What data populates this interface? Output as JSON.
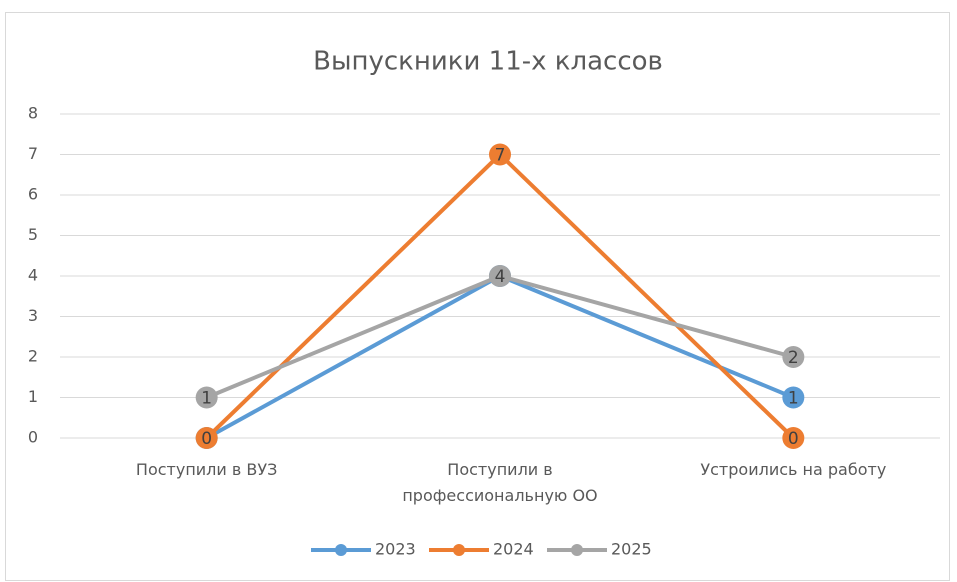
{
  "chart_data": {
    "type": "line",
    "title": "Выпускники 11-х классов",
    "categories": [
      "Поступили в ВУЗ",
      "Поступили в профессиональную ОО",
      "Устроились на работу"
    ],
    "series": [
      {
        "name": "2023",
        "color": "#5b9bd5",
        "values": [
          0,
          4,
          1
        ]
      },
      {
        "name": "2024",
        "color": "#ed7d31",
        "values": [
          0,
          7,
          0
        ]
      },
      {
        "name": "2025",
        "color": "#a5a5a5",
        "values": [
          1,
          4,
          2
        ]
      }
    ],
    "ylim": [
      0,
      8
    ],
    "yticks": [
      0,
      1,
      2,
      3,
      4,
      5,
      6,
      7,
      8
    ],
    "grid": true,
    "legend": "bottom"
  }
}
